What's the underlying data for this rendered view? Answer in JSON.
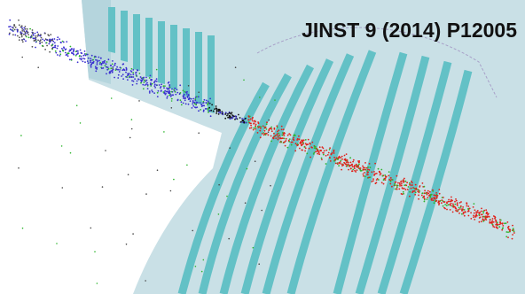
{
  "label": "JINST 9 (2014) P12005"
}
